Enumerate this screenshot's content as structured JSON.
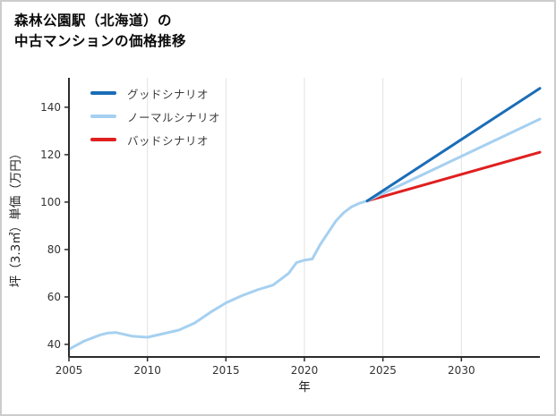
{
  "page": {
    "background": "#ffffff",
    "border_color": "#cccccc"
  },
  "title": {
    "line1": "森林公園駅（北海道）の",
    "line2": "中古マンションの価格推移"
  },
  "chart_data": {
    "type": "line",
    "title": "森林公園駅（北海道）の中古マンションの価格推移",
    "xlabel": "年",
    "ylabel": "坪（3.3㎡）単価（万円）",
    "xlim": [
      2005,
      2035
    ],
    "ylim": [
      34.7,
      152.4
    ],
    "x_ticks": [
      2005,
      2010,
      2015,
      2020,
      2025,
      2030
    ],
    "y_ticks": [
      40,
      60,
      80,
      100,
      120,
      140
    ],
    "grid": "vertical-only",
    "grid_color": "#e2e2e2",
    "axis_color": "#2b2b2b",
    "tick_label_color": "#333333",
    "legend_position": "upper-left",
    "series": [
      {
        "name": "グッドシナリオ",
        "color": "#1b6db6",
        "in_legend": true,
        "x": [
          2024,
          2035
        ],
        "y": [
          100.5,
          148
        ]
      },
      {
        "name": "ノーマルシナリオ",
        "color": "#a6d0f0",
        "in_legend": true,
        "x": [
          2024,
          2035
        ],
        "y": [
          100.5,
          135
        ]
      },
      {
        "name": "バッドシナリオ",
        "color": "#e01f1f",
        "in_legend": true,
        "x": [
          2024,
          2035
        ],
        "y": [
          100.5,
          121
        ]
      },
      {
        "name": "history",
        "color": "#a6d0f0",
        "in_legend": false,
        "x": [
          2005,
          2006,
          2007,
          2007.5,
          2008,
          2009,
          2010,
          2011,
          2012,
          2013,
          2014,
          2015,
          2016,
          2017,
          2018,
          2019,
          2019.5,
          2020,
          2020.5,
          2021,
          2022,
          2022.5,
          2023,
          2023.5,
          2024
        ],
        "y": [
          38,
          41.5,
          44,
          44.8,
          45,
          43.5,
          43,
          44.5,
          46,
          49,
          53.5,
          57.5,
          60.5,
          63,
          65,
          70,
          74.5,
          75.5,
          76,
          82,
          92,
          95.5,
          98,
          99.5,
          100.5
        ]
      }
    ]
  }
}
